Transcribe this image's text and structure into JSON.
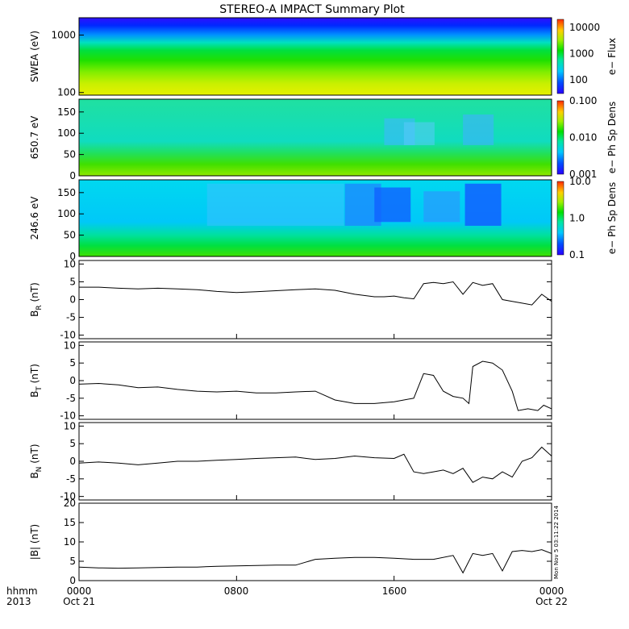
{
  "title": "STEREO-A IMPACT Summary Plot",
  "footer": {
    "left_top": "hhmm",
    "left_bottom": "2013",
    "x_ticks": [
      "0000",
      "0800",
      "1600",
      "0000"
    ],
    "date_left": "Oct 21",
    "date_right": "Oct 22"
  },
  "timestamp": "Mon Nov 5 03:11:22 2014",
  "colors": {
    "low": "#2a00ff",
    "mid": "#00e000",
    "high": "#ff2a00",
    "line": "#000000",
    "background": "#ffffff"
  },
  "chart_data": [
    {
      "type": "heatmap",
      "ylabel": "SWEA (eV)",
      "yscale": "log",
      "ylim": [
        90,
        2000
      ],
      "yticks": [
        "100",
        "1000"
      ],
      "colorbar": {
        "label": "e− Flux",
        "scale": "log",
        "range": [
          30,
          20000
        ],
        "ticks": [
          "100",
          "1000",
          "10000"
        ]
      },
      "x_range": [
        "Oct 21 0000",
        "Oct 22 0000"
      ]
    },
    {
      "type": "heatmap",
      "ylabel": "650.7 eV",
      "ylim": [
        0,
        180
      ],
      "yticks": [
        "0",
        "50",
        "100",
        "150"
      ],
      "colorbar": {
        "label": "e− Ph Sp Dens",
        "scale": "log",
        "range": [
          0.001,
          0.1
        ],
        "ticks": [
          "0.001",
          "0.010",
          "0.100"
        ]
      },
      "x_range": [
        "Oct 21 0000",
        "Oct 22 0000"
      ]
    },
    {
      "type": "heatmap",
      "ylabel": "246.6 eV",
      "ylim": [
        0,
        180
      ],
      "yticks": [
        "0",
        "50",
        "100",
        "150"
      ],
      "colorbar": {
        "label": "e− Ph Sp Dens",
        "scale": "log",
        "range": [
          0.1,
          10.0
        ],
        "ticks": [
          "0.1",
          "1.0",
          "10.0"
        ]
      },
      "x_range": [
        "Oct 21 0000",
        "Oct 22 0000"
      ]
    },
    {
      "type": "line",
      "ylabel_main": "B",
      "ylabel_sub": "R",
      "ylabel_unit": " (nT)",
      "ylim": [
        -11,
        11
      ],
      "yticks": [
        "-10",
        "-5",
        "0",
        "5",
        "10"
      ],
      "x_hours": [
        0,
        1,
        2,
        3,
        4,
        5,
        6,
        7,
        8,
        9,
        10,
        11,
        12,
        13,
        14,
        15,
        15.5,
        16,
        16.5,
        17,
        17.5,
        18,
        18.5,
        19,
        19.5,
        20,
        20.5,
        21,
        21.5,
        22,
        22.5,
        23,
        23.5,
        24
      ],
      "values": [
        3.5,
        3.5,
        3.2,
        3.0,
        3.2,
        3.0,
        2.8,
        2.3,
        2.0,
        2.2,
        2.5,
        2.8,
        3.0,
        2.6,
        1.5,
        0.8,
        0.8,
        1.0,
        0.5,
        0.2,
        4.5,
        4.8,
        4.5,
        5.0,
        1.5,
        4.8,
        4.0,
        4.5,
        0.0,
        -0.5,
        -1.0,
        -1.5,
        1.5,
        -0.5
      ]
    },
    {
      "type": "line",
      "ylabel_main": "B",
      "ylabel_sub": "T",
      "ylabel_unit": " (nT)",
      "ylim": [
        -11,
        11
      ],
      "yticks": [
        "-10",
        "-5",
        "0",
        "5",
        "10"
      ],
      "x_hours": [
        0,
        1,
        2,
        3,
        4,
        5,
        6,
        7,
        8,
        9,
        10,
        11,
        12,
        13,
        14,
        15,
        16,
        17,
        17.5,
        18,
        18.5,
        19,
        19.5,
        19.8,
        20,
        20.5,
        21,
        21.5,
        22,
        22.3,
        22.8,
        23.3,
        23.6,
        24
      ],
      "values": [
        -1.0,
        -0.8,
        -1.2,
        -2.0,
        -1.8,
        -2.5,
        -3.0,
        -3.2,
        -3.0,
        -3.5,
        -3.5,
        -3.2,
        -3.0,
        -5.5,
        -6.5,
        -6.5,
        -6.0,
        -5.0,
        2.0,
        1.5,
        -3.0,
        -4.5,
        -5.0,
        -6.5,
        4.0,
        5.5,
        5.0,
        3.0,
        -3.0,
        -8.5,
        -8.0,
        -8.5,
        -7.0,
        -8.0
      ]
    },
    {
      "type": "line",
      "ylabel_main": "B",
      "ylabel_sub": "N",
      "ylabel_unit": " (nT)",
      "ylim": [
        -11,
        11
      ],
      "yticks": [
        "-10",
        "-5",
        "0",
        "5",
        "10"
      ],
      "x_hours": [
        0,
        1,
        2,
        3,
        4,
        5,
        6,
        7,
        8,
        9,
        10,
        11,
        12,
        13,
        14,
        15,
        16,
        16.5,
        17,
        17.5,
        18,
        18.5,
        19,
        19.5,
        20,
        20.5,
        21,
        21.5,
        22,
        22.5,
        23,
        23.5,
        24
      ],
      "values": [
        -0.5,
        -0.2,
        -0.5,
        -1.0,
        -0.5,
        0.0,
        0.0,
        0.3,
        0.5,
        0.8,
        1.0,
        1.2,
        0.5,
        0.8,
        1.5,
        1.0,
        0.8,
        2.0,
        -3.0,
        -3.5,
        -3.0,
        -2.5,
        -3.5,
        -2.0,
        -6.0,
        -4.5,
        -5.0,
        -3.0,
        -4.5,
        0.0,
        1.0,
        4.0,
        1.5
      ]
    },
    {
      "type": "line",
      "ylabel_main": "|B|",
      "ylabel_sub": "",
      "ylabel_unit": " (nT)",
      "ylim": [
        0,
        20
      ],
      "yticks": [
        "0",
        "5",
        "10",
        "15",
        "20"
      ],
      "x_hours": [
        0,
        1,
        2,
        3,
        4,
        5,
        6,
        7,
        8,
        9,
        10,
        11,
        12,
        13,
        14,
        15,
        16,
        17,
        18,
        19,
        19.5,
        20,
        20.5,
        21,
        21.5,
        22,
        22.5,
        23,
        23.5,
        24
      ],
      "values": [
        3.5,
        3.3,
        3.2,
        3.3,
        3.4,
        3.5,
        3.5,
        3.7,
        3.8,
        3.9,
        4.0,
        4.0,
        5.5,
        5.8,
        6.0,
        6.0,
        5.8,
        5.5,
        5.5,
        6.5,
        2.0,
        7.0,
        6.5,
        7.0,
        2.5,
        7.5,
        7.8,
        7.5,
        8.0,
        7.0
      ]
    }
  ]
}
